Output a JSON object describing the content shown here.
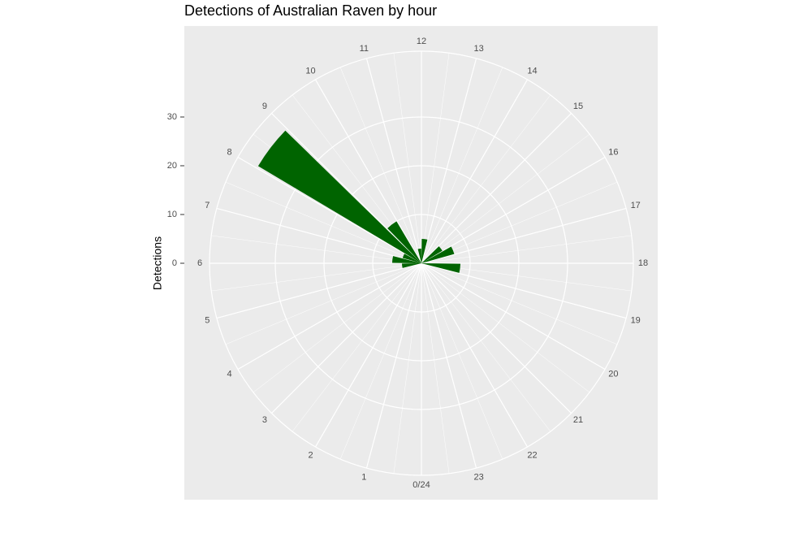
{
  "chart_data": {
    "type": "polar-bar",
    "title": "Detections of Australian Raven by hour",
    "y_label": "Detections",
    "categories": [
      "0/24",
      "1",
      "2",
      "3",
      "4",
      "5",
      "6",
      "7",
      "8",
      "9",
      "10",
      "11",
      "12",
      "13",
      "14",
      "15",
      "16",
      "17",
      "18",
      "19",
      "20",
      "21",
      "22",
      "23"
    ],
    "values": [
      0,
      0,
      0,
      0,
      0,
      4,
      6,
      4,
      39,
      10,
      0,
      3,
      5,
      0,
      0,
      5,
      7,
      0,
      8,
      0,
      0,
      0,
      0,
      0
    ],
    "color": "#006400",
    "ylim": [
      0,
      43.5
    ],
    "yticks": [
      0,
      10,
      20,
      30
    ],
    "grid": true
  }
}
